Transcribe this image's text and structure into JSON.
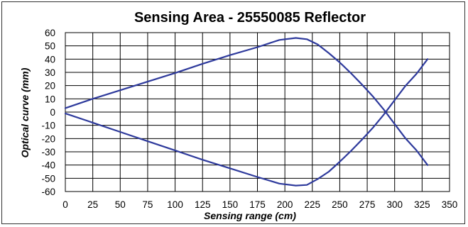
{
  "chart_data": {
    "type": "line",
    "title": "Sensing Area - 25550085 Reflector",
    "xlabel": "Sensing range (cm)",
    "ylabel": "Optical curve (mm)",
    "xlim": [
      0,
      350
    ],
    "ylim": [
      -60,
      60
    ],
    "xticks": [
      0,
      25,
      50,
      75,
      100,
      125,
      150,
      175,
      200,
      225,
      250,
      275,
      300,
      325,
      350
    ],
    "yticks": [
      60,
      50,
      40,
      30,
      20,
      10,
      0,
      -10,
      -20,
      -30,
      -40,
      -50,
      -60
    ],
    "grid": true,
    "legend": "none",
    "colors": {
      "series": "#2e3a9c",
      "grid": "#000000",
      "background": "#ffffff",
      "border": "#333333"
    },
    "series": [
      {
        "x": [
          0,
          25,
          50,
          75,
          100,
          125,
          150,
          175,
          195,
          210,
          220,
          230,
          240,
          250,
          260,
          270,
          280,
          290,
          300,
          310,
          320,
          330
        ],
        "values": [
          3,
          10,
          16.5,
          23,
          29.5,
          36.5,
          43,
          49,
          54.5,
          56,
          55,
          51,
          44.5,
          37.5,
          29.5,
          21,
          12,
          2,
          -9,
          -20,
          -29,
          -40
        ]
      },
      {
        "x": [
          0,
          25,
          50,
          75,
          100,
          125,
          150,
          175,
          195,
          210,
          220,
          230,
          240,
          250,
          260,
          270,
          280,
          290,
          300,
          310,
          320,
          330
        ],
        "values": [
          -1,
          -8,
          -15,
          -22,
          -29,
          -36,
          -42.5,
          -49,
          -54,
          -55.5,
          -55,
          -50.5,
          -45,
          -37.5,
          -29.5,
          -21,
          -12,
          -2,
          9,
          20,
          29,
          40
        ]
      }
    ]
  }
}
